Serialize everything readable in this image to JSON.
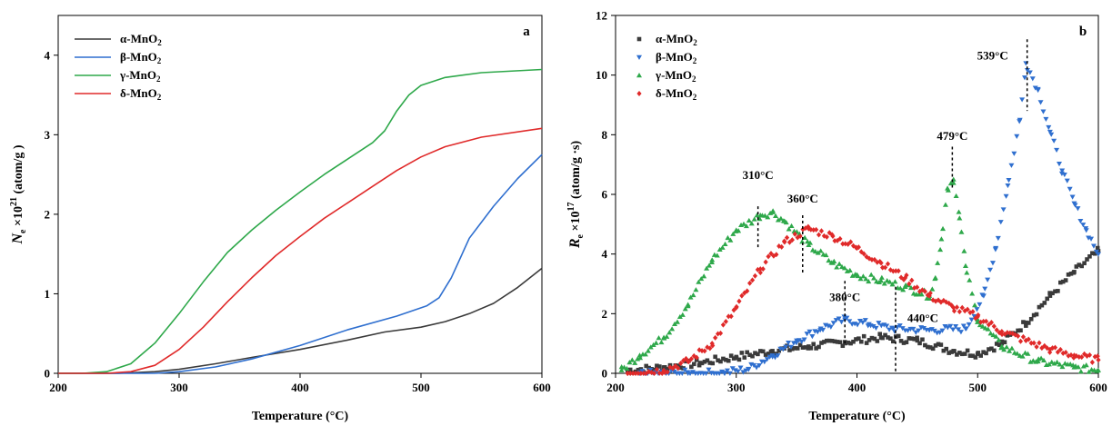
{
  "chart_data": [
    {
      "type": "line",
      "panel_label": "a",
      "xlabel": "Temperature (°C)",
      "ylabel_main": "N",
      "ylabel_sub": "e",
      "ylabel_rest": " ×10",
      "ylabel_sup": "21",
      "ylabel_unit": " (atom/g )",
      "xlim": [
        200,
        600
      ],
      "ylim": [
        0,
        4.5
      ],
      "xticks": [
        "200",
        "300",
        "400",
        "500",
        "600"
      ],
      "yticks": [
        "0",
        "1",
        "2",
        "3",
        "4"
      ],
      "legend_position": "top-left",
      "series": [
        {
          "name": "α-MnO",
          "sub": "2",
          "color": "#3a3a3a",
          "x": [
            200,
            220,
            250,
            280,
            300,
            330,
            360,
            400,
            440,
            470,
            500,
            520,
            540,
            560,
            580,
            600
          ],
          "y": [
            0,
            0,
            0,
            0.02,
            0.05,
            0.12,
            0.2,
            0.3,
            0.42,
            0.52,
            0.58,
            0.65,
            0.75,
            0.88,
            1.08,
            1.32
          ]
        },
        {
          "name": "β-MnO",
          "sub": "2",
          "color": "#2f6fcf",
          "x": [
            200,
            250,
            280,
            300,
            330,
            360,
            400,
            440,
            480,
            505,
            515,
            525,
            540,
            560,
            580,
            600
          ],
          "y": [
            0,
            0,
            0,
            0.02,
            0.08,
            0.18,
            0.35,
            0.55,
            0.72,
            0.85,
            0.95,
            1.2,
            1.7,
            2.1,
            2.45,
            2.75
          ]
        },
        {
          "name": "γ-MnO",
          "sub": "2",
          "color": "#2ea84a",
          "x": [
            200,
            220,
            240,
            260,
            280,
            300,
            320,
            340,
            360,
            380,
            400,
            420,
            440,
            460,
            470,
            480,
            490,
            500,
            520,
            550,
            600
          ],
          "y": [
            0,
            0,
            0.02,
            0.12,
            0.38,
            0.75,
            1.15,
            1.52,
            1.8,
            2.05,
            2.28,
            2.5,
            2.7,
            2.9,
            3.05,
            3.3,
            3.5,
            3.62,
            3.72,
            3.78,
            3.82
          ]
        },
        {
          "name": "δ-MnO",
          "sub": "2",
          "color": "#e02a2a",
          "x": [
            200,
            240,
            260,
            280,
            300,
            320,
            340,
            360,
            380,
            400,
            420,
            440,
            460,
            480,
            500,
            520,
            550,
            600
          ],
          "y": [
            0,
            0,
            0.02,
            0.1,
            0.3,
            0.58,
            0.9,
            1.2,
            1.48,
            1.72,
            1.95,
            2.15,
            2.35,
            2.55,
            2.72,
            2.85,
            2.97,
            3.08
          ]
        }
      ]
    },
    {
      "type": "scatter",
      "panel_label": "b",
      "xlabel": "Temperature (°C)",
      "ylabel_main": "R",
      "ylabel_sub": "e",
      "ylabel_rest": " ×10",
      "ylabel_sup": "17",
      "ylabel_unit": " (atom/g ·s)",
      "xlim": [
        200,
        600
      ],
      "ylim": [
        0,
        12
      ],
      "xticks": [
        "200",
        "300",
        "400",
        "500",
        "600"
      ],
      "yticks": [
        "0",
        "2",
        "4",
        "6",
        "8",
        "10",
        "12"
      ],
      "legend_position": "top-left",
      "series": [
        {
          "name": "α-MnO",
          "sub": "2",
          "color": "#3a3a3a",
          "marker": "square",
          "x": [
            210,
            240,
            270,
            300,
            330,
            360,
            390,
            420,
            450,
            480,
            500,
            520,
            540,
            560,
            580,
            600
          ],
          "y": [
            0.1,
            0.2,
            0.35,
            0.55,
            0.75,
            0.9,
            1.05,
            1.2,
            1.1,
            0.75,
            0.65,
            1.0,
            1.7,
            2.6,
            3.4,
            4.1
          ]
        },
        {
          "name": "β-MnO",
          "sub": "2",
          "color": "#2f6fcf",
          "marker": "triangle-down",
          "x": [
            220,
            260,
            290,
            310,
            330,
            350,
            370,
            390,
            410,
            430,
            460,
            490,
            505,
            515,
            525,
            535,
            540,
            550,
            560,
            570,
            580,
            590,
            600
          ],
          "y": [
            0,
            0,
            0.02,
            0.15,
            0.6,
            1.1,
            1.5,
            1.8,
            1.65,
            1.5,
            1.45,
            1.5,
            2.6,
            4.2,
            6.3,
            8.5,
            10.4,
            9.5,
            8.1,
            6.8,
            5.7,
            4.8,
            4.0
          ]
        },
        {
          "name": "γ-MnO",
          "sub": "2",
          "color": "#2ea84a",
          "marker": "triangle-up",
          "x": [
            205,
            220,
            240,
            260,
            280,
            300,
            320,
            330,
            340,
            360,
            380,
            400,
            420,
            440,
            460,
            465,
            470,
            475,
            480,
            485,
            490,
            500,
            520,
            550,
            580,
            600
          ],
          "y": [
            0.1,
            0.6,
            1.2,
            2.3,
            3.8,
            4.8,
            5.3,
            5.4,
            5.1,
            4.3,
            3.7,
            3.3,
            3.1,
            2.9,
            2.6,
            3.2,
            4.5,
            6.2,
            6.5,
            5.2,
            3.6,
            1.8,
            0.9,
            0.4,
            0.2,
            0.1
          ]
        },
        {
          "name": "δ-MnO",
          "sub": "2",
          "color": "#e02a2a",
          "marker": "diamond",
          "x": [
            210,
            240,
            260,
            280,
            300,
            320,
            340,
            360,
            380,
            400,
            420,
            440,
            460,
            480,
            500,
            520,
            540,
            560,
            580,
            600
          ],
          "y": [
            0,
            0.1,
            0.4,
            1.0,
            2.2,
            3.5,
            4.4,
            4.85,
            4.6,
            4.2,
            3.7,
            3.2,
            2.6,
            2.2,
            1.9,
            1.4,
            1.1,
            0.8,
            0.6,
            0.45
          ]
        }
      ],
      "annotations": [
        {
          "label": "310°C",
          "x": 318,
          "y_top": 5.6,
          "y_bottom": 4.2,
          "text_y": 6.4
        },
        {
          "label": "360°C",
          "x": 355,
          "y_top": 5.3,
          "y_bottom": 3.3,
          "text_y": 5.6
        },
        {
          "label": "380°C",
          "x": 390,
          "y_top": 3.1,
          "y_bottom": 1.0,
          "text_y": 2.3
        },
        {
          "label": "440°C",
          "x": 432,
          "y_top": 2.9,
          "y_bottom": 0.05,
          "text_y": 1.6
        },
        {
          "label": "479°C",
          "x": 479,
          "y_top": 7.6,
          "y_bottom": 6.2,
          "text_y": 7.7
        },
        {
          "label": "539°C",
          "x": 541,
          "y_top": 11.2,
          "y_bottom": 8.8,
          "text_y": 10.4
        }
      ]
    }
  ]
}
